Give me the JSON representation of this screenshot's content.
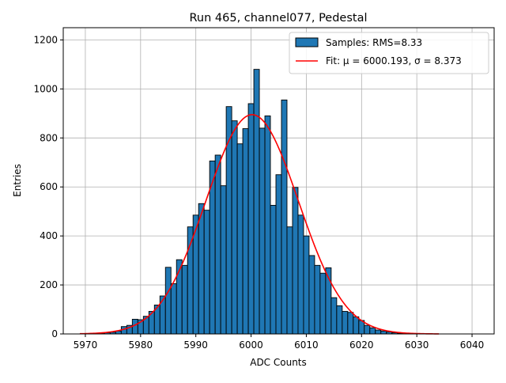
{
  "chart_data": {
    "type": "bar",
    "title": "Run 465, channel077, Pedestal",
    "xlabel": "ADC Counts",
    "ylabel": "Entries",
    "xlim": [
      5966,
      6044
    ],
    "ylim": [
      0,
      1250
    ],
    "xticks": [
      5970,
      5980,
      5990,
      6000,
      6010,
      6020,
      6030,
      6040
    ],
    "yticks": [
      0,
      200,
      400,
      600,
      800,
      1000,
      1200
    ],
    "grid": true,
    "legend_position": "top-right",
    "colors": {
      "bars": "#1f77b4",
      "bar_edge": "#000000",
      "fit": "#ff0000",
      "grid": "#b0b0b0"
    },
    "histogram": {
      "name": "Samples: RMS=8.33",
      "bin_width": 1,
      "bin_centers": [
        5970,
        5971,
        5972,
        5973,
        5974,
        5975,
        5976,
        5977,
        5978,
        5979,
        5980,
        5981,
        5982,
        5983,
        5984,
        5985,
        5986,
        5987,
        5988,
        5989,
        5990,
        5991,
        5992,
        5993,
        5994,
        5995,
        5996,
        5997,
        5998,
        5999,
        6000,
        6001,
        6002,
        6003,
        6004,
        6005,
        6006,
        6007,
        6008,
        6009,
        6010,
        6011,
        6012,
        6013,
        6014,
        6015,
        6016,
        6017,
        6018,
        6019,
        6020,
        6021,
        6022,
        6023,
        6024,
        6025,
        6026,
        6027,
        6028,
        6029,
        6030
      ],
      "counts": [
        1,
        2,
        2,
        3,
        5,
        7,
        12,
        30,
        35,
        60,
        58,
        72,
        92,
        118,
        155,
        272,
        205,
        303,
        280,
        437,
        485,
        532,
        505,
        706,
        730,
        605,
        928,
        870,
        776,
        838,
        940,
        1080,
        840,
        890,
        525,
        650,
        955,
        437,
        598,
        485,
        400,
        320,
        280,
        248,
        270,
        148,
        115,
        92,
        88,
        70,
        55,
        35,
        25,
        16,
        12,
        8,
        5,
        3,
        2,
        1,
        1
      ]
    },
    "fit": {
      "name": "Fit: μ = 6000.193, σ = 8.373",
      "type": "gaussian",
      "mu": 6000.193,
      "sigma": 8.373,
      "amplitude": 895,
      "x_range": [
        5969,
        6034
      ]
    }
  }
}
